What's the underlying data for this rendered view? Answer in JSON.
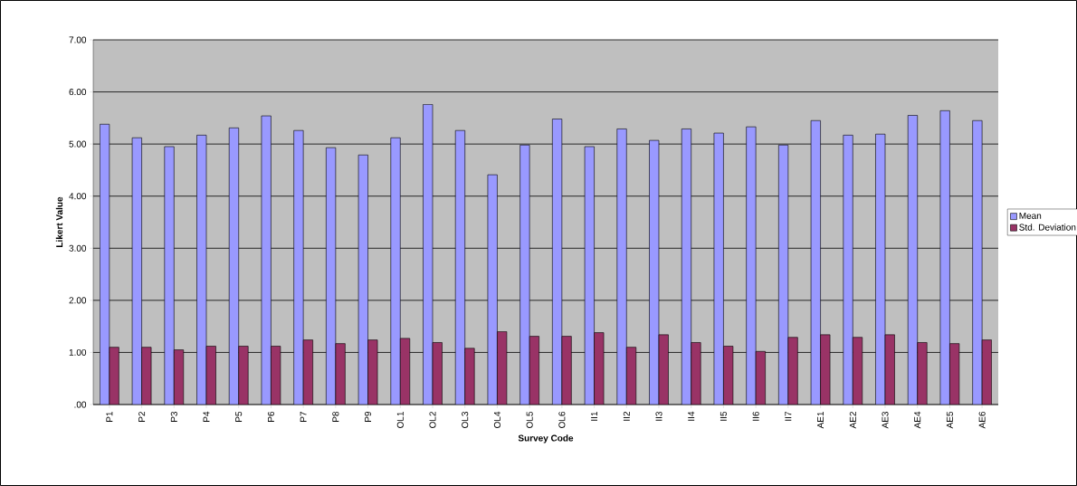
{
  "chart_data": {
    "type": "bar",
    "xlabel": "Survey Code",
    "ylabel": "Likert Value",
    "categories": [
      "P1",
      "P2",
      "P3",
      "P4",
      "P5",
      "P6",
      "P7",
      "P8",
      "P9",
      "OL1",
      "OL2",
      "OL3",
      "OL4",
      "OL5",
      "OL6",
      "II1",
      "II2",
      "II3",
      "II4",
      "II5",
      "II6",
      "II7",
      "AE1",
      "AE2",
      "AE3",
      "AE4",
      "AE5",
      "AE6"
    ],
    "series": [
      {
        "name": "Mean",
        "color": "#9999ff",
        "values": [
          5.38,
          5.12,
          4.95,
          5.17,
          5.31,
          5.54,
          5.26,
          4.93,
          4.79,
          5.12,
          5.76,
          5.26,
          4.41,
          4.98,
          5.48,
          4.95,
          5.29,
          5.07,
          5.29,
          5.21,
          5.33,
          4.98,
          5.45,
          5.17,
          5.19,
          5.55,
          5.64,
          5.45
        ]
      },
      {
        "name": "Std. Deviation",
        "color": "#993366",
        "values": [
          1.1,
          1.1,
          1.05,
          1.12,
          1.12,
          1.12,
          1.24,
          1.17,
          1.24,
          1.27,
          1.19,
          1.08,
          1.4,
          1.31,
          1.31,
          1.38,
          1.1,
          1.34,
          1.19,
          1.12,
          1.02,
          1.29,
          1.34,
          1.29,
          1.34,
          1.19,
          1.17,
          1.24
        ]
      }
    ],
    "ylim": [
      0,
      7
    ],
    "yticks": [
      {
        "value": 0,
        "label": ".00"
      },
      {
        "value": 1,
        "label": "1.00"
      },
      {
        "value": 2,
        "label": "2.00"
      },
      {
        "value": 3,
        "label": "3.00"
      },
      {
        "value": 4,
        "label": "4.00"
      },
      {
        "value": 5,
        "label": "5.00"
      },
      {
        "value": 6,
        "label": "6.00"
      },
      {
        "value": 7,
        "label": "7.00"
      }
    ],
    "grid": "y",
    "legend": "right"
  }
}
